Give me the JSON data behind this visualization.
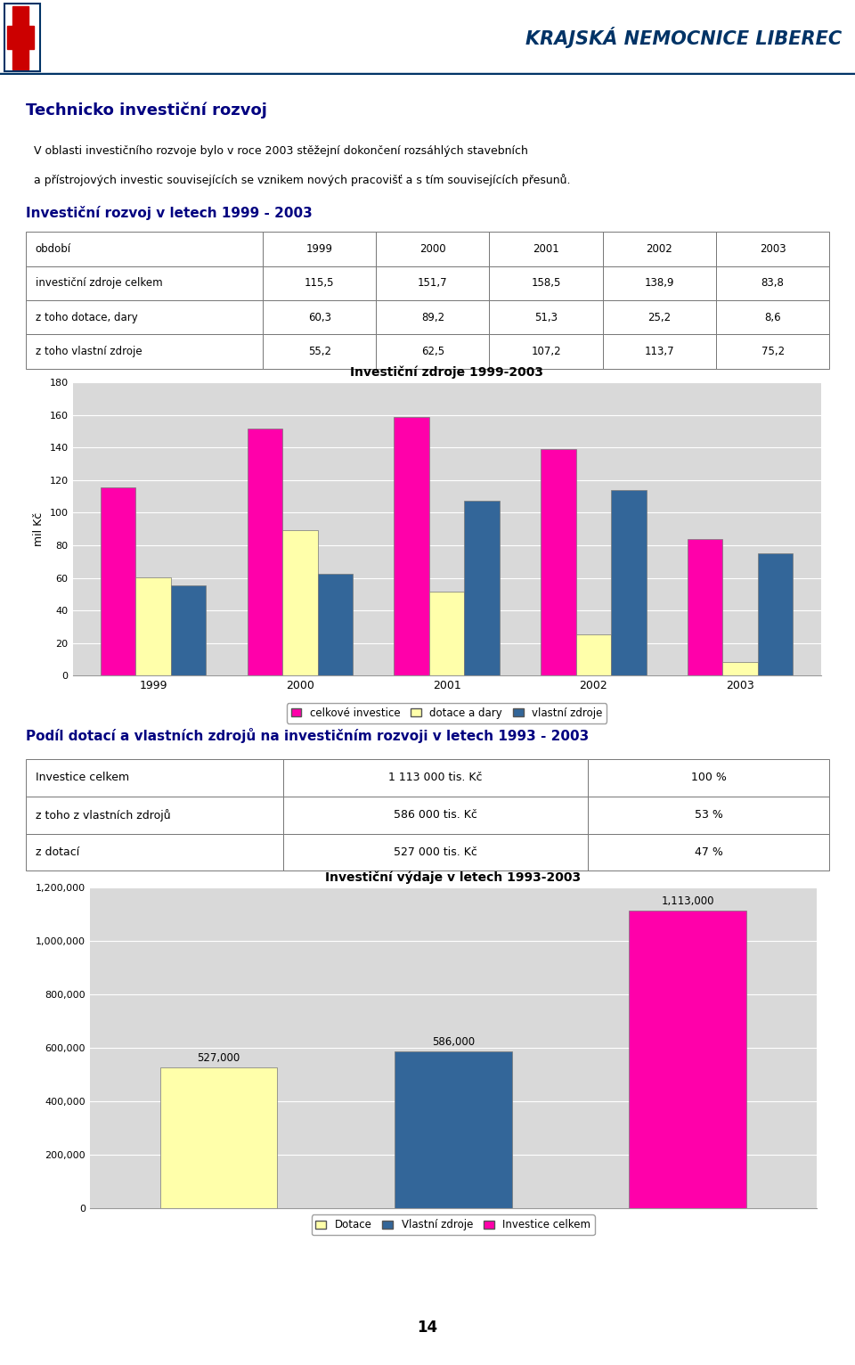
{
  "page_title": "KRAJSKÁ NEMOCNICE LIBEREC",
  "section_title": "Technicko investiční rozvoj",
  "paragraph1": "V oblasti investičního rozvoje bylo v roce 2003 stěžejní dokončení rozsáhlých stavebních",
  "paragraph2": "a přístrojových investic souvisejících se vznikem nových pracovišť a s tím souvisejících přesunů.",
  "table1_title": "Investiční rozvoj v letech 1999 - 2003",
  "table1_headers": [
    "období",
    "1999",
    "2000",
    "2001",
    "2002",
    "2003"
  ],
  "table1_rows": [
    [
      "investiční zdroje celkem",
      "115,5",
      "151,7",
      "158,5",
      "138,9",
      "83,8"
    ],
    [
      "z toho dotace, dary",
      "60,3",
      "89,2",
      "51,3",
      "25,2",
      "8,6"
    ],
    [
      "z toho vlastní zdroje",
      "55,2",
      "62,5",
      "107,2",
      "113,7",
      "75,2"
    ]
  ],
  "chart1_title": "Investiční zdroje 1999-2003",
  "chart1_years": [
    "1999",
    "2000",
    "2001",
    "2002",
    "2003"
  ],
  "chart1_celkove": [
    115.5,
    151.7,
    158.5,
    138.9,
    83.8
  ],
  "chart1_dotace": [
    60.3,
    89.2,
    51.3,
    25.2,
    8.6
  ],
  "chart1_vlastni": [
    55.2,
    62.5,
    107.2,
    113.7,
    75.2
  ],
  "chart1_ylabel": "mil Kč",
  "chart1_ylim": [
    0,
    180
  ],
  "chart1_yticks": [
    0,
    20,
    40,
    60,
    80,
    100,
    120,
    140,
    160,
    180
  ],
  "chart1_color_celkove": "#FF00AA",
  "chart1_color_dotace": "#FFFFAA",
  "chart1_color_vlastni": "#336699",
  "chart1_legend": [
    "celkové investice",
    "dotace a dary",
    "vlastní zdroje"
  ],
  "chart1_bg": "#D9D9D9",
  "section2_title": "Podíl dotací a vlastních zdrojů na investičním rozvoji v letech 1993 - 2003",
  "table2_rows": [
    [
      "Investice celkem",
      "1 113 000 tis. Kč",
      "100 %"
    ],
    [
      "z toho z vlastních zdrojů",
      "586 000 tis. Kč",
      "53 %"
    ],
    [
      "z dotací",
      "527 000 tis. Kč",
      "47 %"
    ]
  ],
  "chart2_title": "Investiční výdaje v letech 1993-2003",
  "chart2_labels": [
    "Dotace",
    "Vlastní zdroje",
    "Investice celkem"
  ],
  "chart2_values": [
    527000,
    586000,
    1113000
  ],
  "chart2_colors": [
    "#FFFFAA",
    "#336699",
    "#FF00AA"
  ],
  "chart2_ylim": [
    0,
    1200000
  ],
  "chart2_yticks": [
    0,
    200000,
    400000,
    600000,
    800000,
    1000000,
    1200000
  ],
  "chart2_ytick_labels": [
    "0",
    "200,000",
    "400,000",
    "600,000",
    "800,000",
    "1,000,000",
    "1,200,000"
  ],
  "chart2_bg": "#D9D9D9",
  "page_number": "14",
  "bg_color": "#FFFFFF",
  "header_line_color": "#003366",
  "title_color": "#003366",
  "section_color": "#000080"
}
